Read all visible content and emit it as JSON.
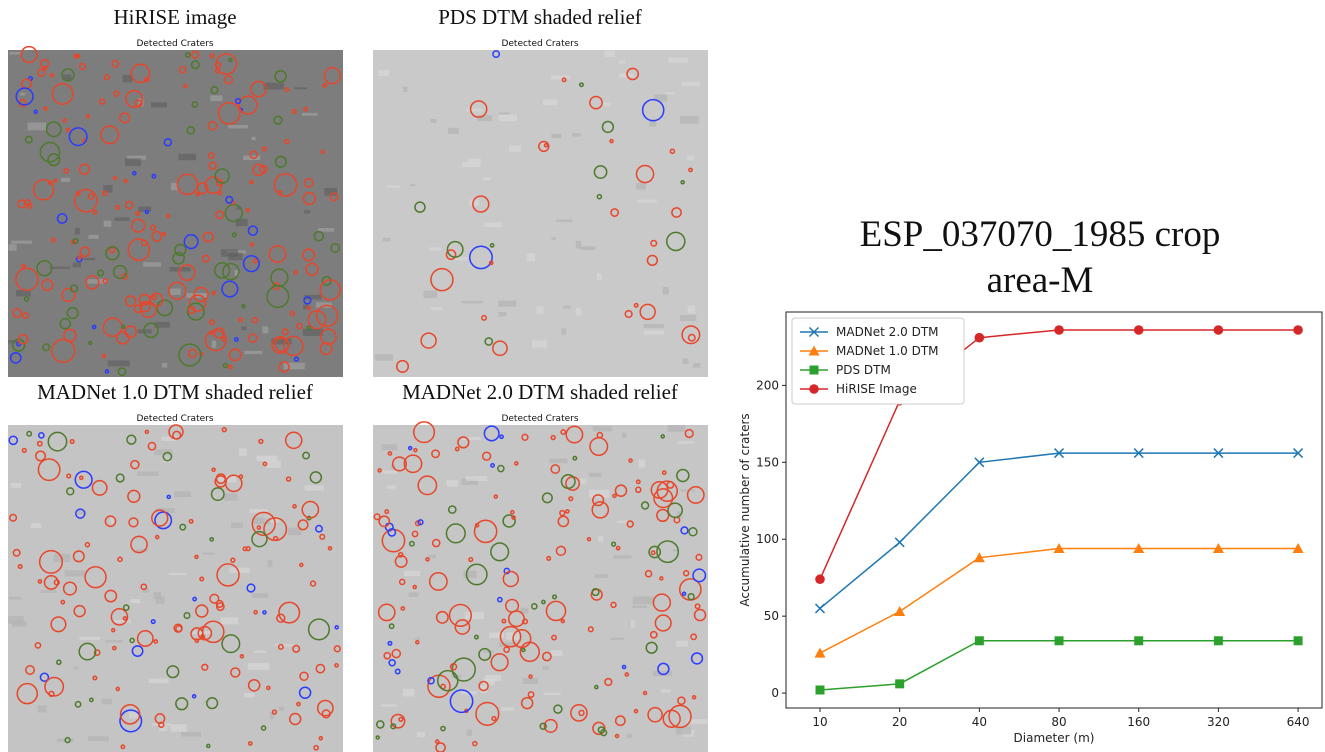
{
  "panels": [
    {
      "title": "HiRISE image",
      "subtitle": "Detected Craters"
    },
    {
      "title": "PDS DTM shaded relief",
      "subtitle": "Detected Craters"
    },
    {
      "title": "MADNet 1.0 DTM shaded relief",
      "subtitle": "Detected Craters"
    },
    {
      "title": "MADNet 2.0 DTM shaded relief",
      "subtitle": "Detected Craters"
    }
  ],
  "chart_data": {
    "type": "line",
    "title": "ESP_037070_1985 crop area-M",
    "x_label": "Diameter (m)",
    "y_label": "Accumulative number of craters",
    "x": [
      10,
      20,
      40,
      80,
      160,
      320,
      640
    ],
    "xscale": "log",
    "xlim": [
      7.44,
      788
    ],
    "xticks": [
      10,
      20,
      40,
      80,
      160,
      320,
      640
    ],
    "ylim": [
      -9.7,
      247.7
    ],
    "yticks": [
      0,
      50,
      100,
      150,
      200
    ],
    "grid": false,
    "legend": "upper left",
    "series": [
      {
        "name": "MADNet 2.0 DTM",
        "color": "#1f77b4",
        "marker": "x",
        "values": [
          55,
          98,
          150,
          156,
          156,
          156,
          156
        ]
      },
      {
        "name": "MADNet 1.0 DTM",
        "color": "#ff7f0e",
        "marker": "triangle",
        "values": [
          26,
          53,
          88,
          94,
          94,
          94,
          94
        ]
      },
      {
        "name": "PDS DTM",
        "color": "#2ca02c",
        "marker": "square",
        "values": [
          2,
          6,
          34,
          34,
          34,
          34,
          34
        ]
      },
      {
        "name": "HiRISE Image",
        "color": "#d62728",
        "marker": "circle",
        "values": [
          74,
          190,
          231,
          236,
          236,
          236,
          236
        ]
      }
    ]
  }
}
